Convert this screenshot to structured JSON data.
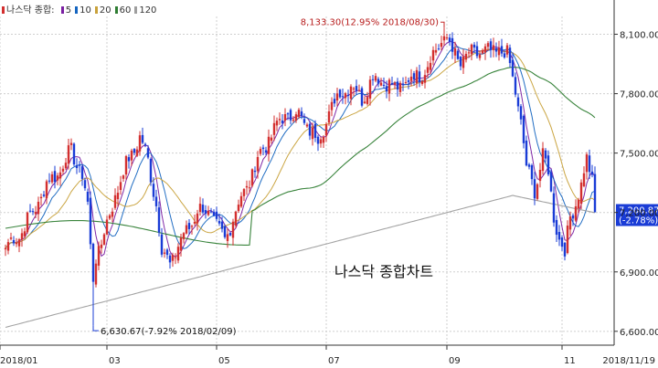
{
  "chart_data": {
    "type": "candlestick",
    "title": "나스닥 종합차트",
    "legend": {
      "label": "나스닥 종합:",
      "items": [
        {
          "name": "5",
          "color": "#7a1fa2"
        },
        {
          "name": "10",
          "color": "#1565c0"
        },
        {
          "name": "20",
          "color": "#c8a13a"
        },
        {
          "name": "60",
          "color": "#2e7d32"
        },
        {
          "name": "120",
          "color": "#9e9e9e"
        }
      ]
    },
    "y_ticks": [
      "8,100.00",
      "7,800.00",
      "7,500.00",
      "7,200.00",
      "6,900.00",
      "6,600.00"
    ],
    "x_ticks": [
      "2018/01",
      "03",
      "05",
      "07",
      "09",
      "11",
      "2018/11/19"
    ],
    "ylim": [
      6530,
      8190
    ],
    "colors": {
      "up": "#d32f2f",
      "down": "#1a3cd6",
      "grid": "#cfcfcf"
    },
    "annotations": {
      "high": {
        "text": "8,133.30(12.95% 2018/08/30)",
        "value": 8133.3
      },
      "low": {
        "text": "6,630.67(-7.92% 2018/02/09)",
        "value": 6630.67
      }
    },
    "current": {
      "value_text": "7,200.87",
      "change_text": "(-2.78%)",
      "value": 7200.87
    },
    "keypoints": [
      {
        "i": 0,
        "v": 7020
      },
      {
        "i": 5,
        "v": 7090
      },
      {
        "i": 10,
        "v": 7200
      },
      {
        "i": 15,
        "v": 7340
      },
      {
        "i": 20,
        "v": 7420
      },
      {
        "i": 24,
        "v": 7510
      },
      {
        "i": 28,
        "v": 7390
      },
      {
        "i": 30,
        "v": 7230
      },
      {
        "i": 31,
        "v": 7020
      },
      {
        "i": 32,
        "v": 6960
      },
      {
        "i": 35,
        "v": 7040
      },
      {
        "i": 40,
        "v": 7290
      },
      {
        "i": 45,
        "v": 7470
      },
      {
        "i": 49,
        "v": 7580
      },
      {
        "i": 52,
        "v": 7460
      },
      {
        "i": 55,
        "v": 7250
      },
      {
        "i": 57,
        "v": 7000
      },
      {
        "i": 60,
        "v": 6950
      },
      {
        "i": 65,
        "v": 7080
      },
      {
        "i": 70,
        "v": 7210
      },
      {
        "i": 75,
        "v": 7200
      },
      {
        "i": 78,
        "v": 7100
      },
      {
        "i": 80,
        "v": 7060
      },
      {
        "i": 83,
        "v": 7180
      },
      {
        "i": 88,
        "v": 7330
      },
      {
        "i": 92,
        "v": 7470
      },
      {
        "i": 98,
        "v": 7620
      },
      {
        "i": 102,
        "v": 7690
      },
      {
        "i": 106,
        "v": 7700
      },
      {
        "i": 110,
        "v": 7640
      },
      {
        "i": 114,
        "v": 7560
      },
      {
        "i": 118,
        "v": 7700
      },
      {
        "i": 122,
        "v": 7810
      },
      {
        "i": 126,
        "v": 7840
      },
      {
        "i": 130,
        "v": 7780
      },
      {
        "i": 134,
        "v": 7880
      },
      {
        "i": 138,
        "v": 7870
      },
      {
        "i": 142,
        "v": 7820
      },
      {
        "i": 146,
        "v": 7860
      },
      {
        "i": 150,
        "v": 7890
      },
      {
        "i": 154,
        "v": 7940
      },
      {
        "i": 158,
        "v": 8050
      },
      {
        "i": 160,
        "v": 8100
      },
      {
        "i": 163,
        "v": 8020
      },
      {
        "i": 166,
        "v": 7960
      },
      {
        "i": 169,
        "v": 7990
      },
      {
        "i": 173,
        "v": 8020
      },
      {
        "i": 177,
        "v": 8000
      },
      {
        "i": 180,
        "v": 8030
      },
      {
        "i": 183,
        "v": 7990
      },
      {
        "i": 186,
        "v": 7820
      },
      {
        "i": 188,
        "v": 7660
      },
      {
        "i": 190,
        "v": 7420
      },
      {
        "i": 193,
        "v": 7320
      },
      {
        "i": 196,
        "v": 7480
      },
      {
        "i": 198,
        "v": 7400
      },
      {
        "i": 200,
        "v": 7190
      },
      {
        "i": 202,
        "v": 7070
      },
      {
        "i": 204,
        "v": 6990
      },
      {
        "i": 206,
        "v": 7180
      },
      {
        "i": 208,
        "v": 7260
      },
      {
        "i": 210,
        "v": 7330
      },
      {
        "i": 212,
        "v": 7460
      },
      {
        "i": 214,
        "v": 7380
      },
      {
        "i": 215,
        "v": 7200.87
      }
    ]
  }
}
